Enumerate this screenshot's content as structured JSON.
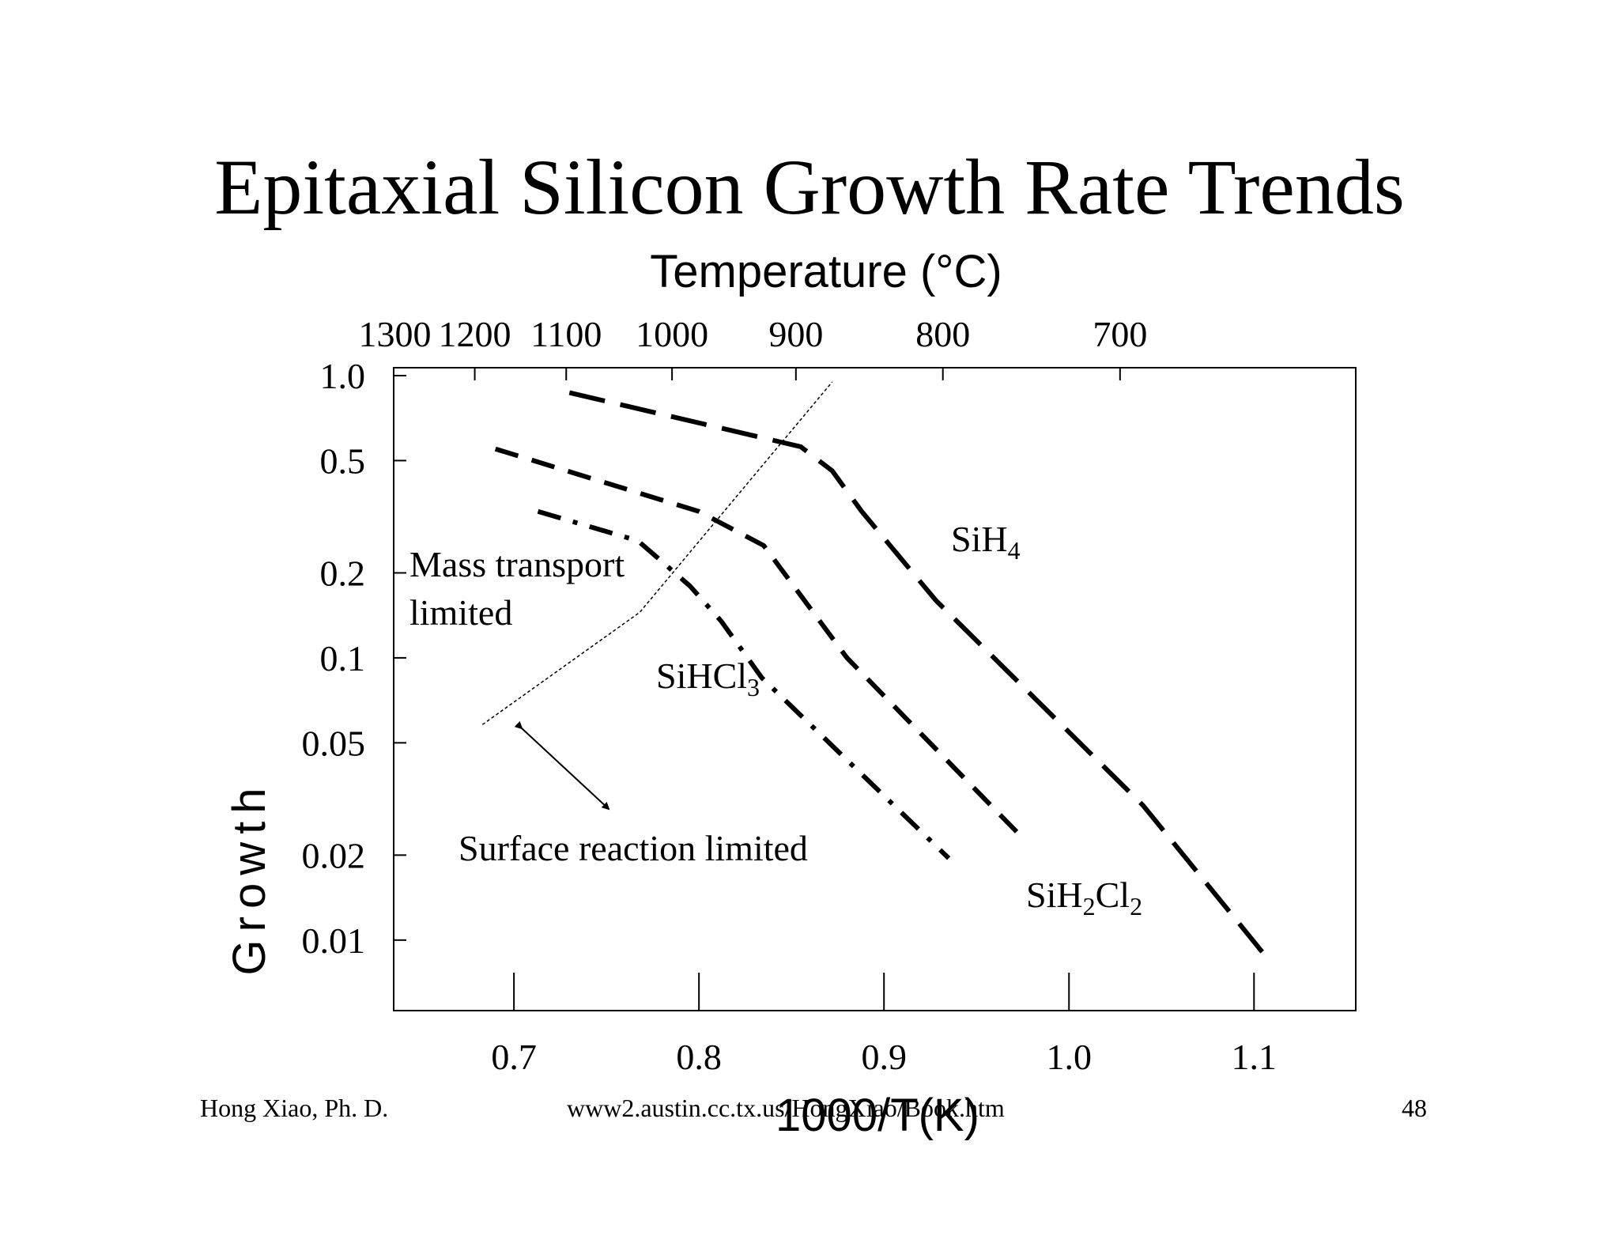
{
  "slide": {
    "title": "Epitaxial Silicon Growth Rate Trends",
    "footer_author": "Hong Xiao, Ph. D.",
    "footer_url": "www2.austin.cc.tx.us/HongXiao/Book.htm",
    "page_number": "48"
  },
  "chart_data": {
    "type": "line",
    "xlabel": "1000/T(K)",
    "ylabel": "Growth",
    "top_axis_label": "Temperature (°C)",
    "xlim": [
      0.635,
      1.155
    ],
    "ylim": [
      0.006,
      1.0
    ],
    "yscale": "log",
    "x_ticks": [
      {
        "value": 0.7,
        "label": "0.7"
      },
      {
        "value": 0.8,
        "label": "0.8"
      },
      {
        "value": 0.9,
        "label": "0.9"
      },
      {
        "value": 1.0,
        "label": "1.0"
      },
      {
        "value": 1.1,
        "label": "1.1"
      }
    ],
    "y_ticks": [
      {
        "value": 1.0,
        "label": "1.0"
      },
      {
        "value": 0.5,
        "label": "0.5"
      },
      {
        "value": 0.2,
        "label": "0.2"
      },
      {
        "value": 0.1,
        "label": "0.1"
      },
      {
        "value": 0.05,
        "label": "0.05"
      },
      {
        "value": 0.02,
        "label": "0.02"
      },
      {
        "value": 0.01,
        "label": "0.01"
      }
    ],
    "top_ticks": [
      {
        "value": 1300,
        "label": "1300"
      },
      {
        "value": 1200,
        "label": "1200"
      },
      {
        "value": 1100,
        "label": "1100"
      },
      {
        "value": 1000,
        "label": "1000"
      },
      {
        "value": 900,
        "label": "900"
      },
      {
        "value": 800,
        "label": "800"
      },
      {
        "value": 700,
        "label": "700"
      }
    ],
    "series": [
      {
        "name": "SiH4",
        "label_main": "SiH",
        "label_sub": "4",
        "style": "long-dash",
        "x": [
          0.73,
          0.855,
          0.872,
          0.888,
          0.928,
          1.04,
          1.108
        ],
        "y": [
          0.87,
          0.56,
          0.46,
          0.33,
          0.16,
          0.03,
          0.0085
        ]
      },
      {
        "name": "SiH2Cl2",
        "label_parts": [
          "SiH",
          "2",
          "Cl",
          "2"
        ],
        "style": "dash",
        "x": [
          0.69,
          0.8,
          0.835,
          0.88,
          0.975
        ],
        "y": [
          0.55,
          0.33,
          0.25,
          0.1,
          0.023
        ]
      },
      {
        "name": "SiHCl3",
        "label_main": "SiHCl",
        "label_sub": "3",
        "style": "dash-dot",
        "x": [
          0.713,
          0.767,
          0.795,
          0.812,
          0.834,
          0.935
        ],
        "y": [
          0.33,
          0.26,
          0.18,
          0.135,
          0.085,
          0.0195
        ]
      }
    ],
    "boundary_line": {
      "x": [
        0.683,
        0.768,
        0.872
      ],
      "y": [
        0.058,
        0.145,
        0.95
      ]
    },
    "annotations": {
      "upper_region_line1": "Mass transport",
      "upper_region_line2": "limited",
      "lower_region": "Surface reaction limited"
    },
    "grid": false
  }
}
